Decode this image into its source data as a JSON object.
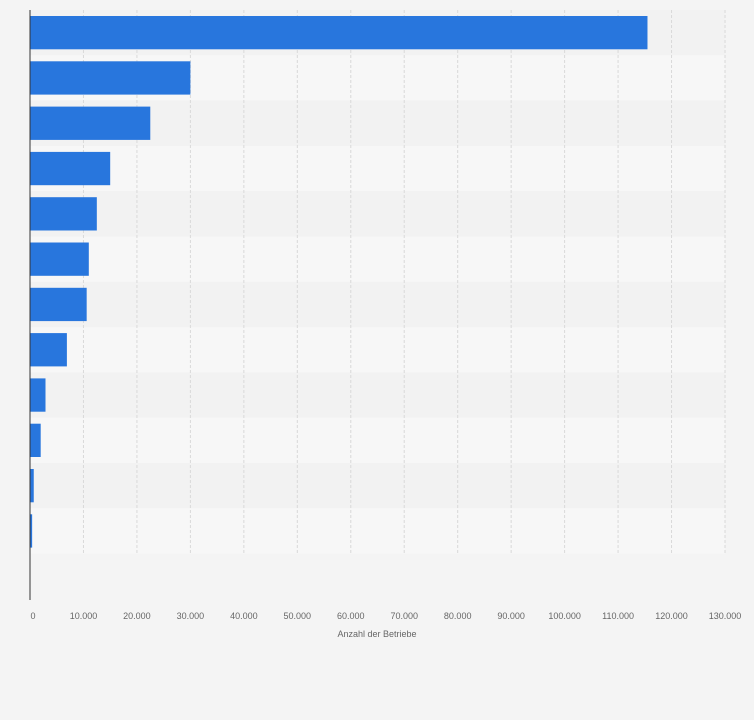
{
  "chart_data": {
    "type": "bar",
    "orientation": "horizontal",
    "categories": [
      "",
      "",
      "",
      "",
      "",
      "",
      "",
      "",
      "",
      "",
      "",
      ""
    ],
    "values": [
      115500,
      30000,
      22500,
      15000,
      12500,
      11000,
      10600,
      6900,
      2900,
      2000,
      700,
      400
    ],
    "title": "",
    "xlabel": "Anzahl der Betriebe",
    "ylabel": "",
    "xlim": [
      0,
      130000
    ],
    "xticks": [
      0,
      10000,
      20000,
      30000,
      40000,
      50000,
      60000,
      70000,
      80000,
      90000,
      100000,
      110000,
      120000,
      130000
    ],
    "xtick_labels": [
      "0",
      "10.000",
      "20.000",
      "30.000",
      "40.000",
      "50.000",
      "60.000",
      "70.000",
      "80.000",
      "90.000",
      "100.000",
      "110.000",
      "120.000",
      "130.000"
    ],
    "grid": true,
    "bar_color": "#2876dd",
    "row_colors": [
      "#f2f2f2",
      "#f7f7f7"
    ],
    "grid_color": "#d9d9d9",
    "axis_color": "#333333",
    "label_color": "#666666"
  }
}
